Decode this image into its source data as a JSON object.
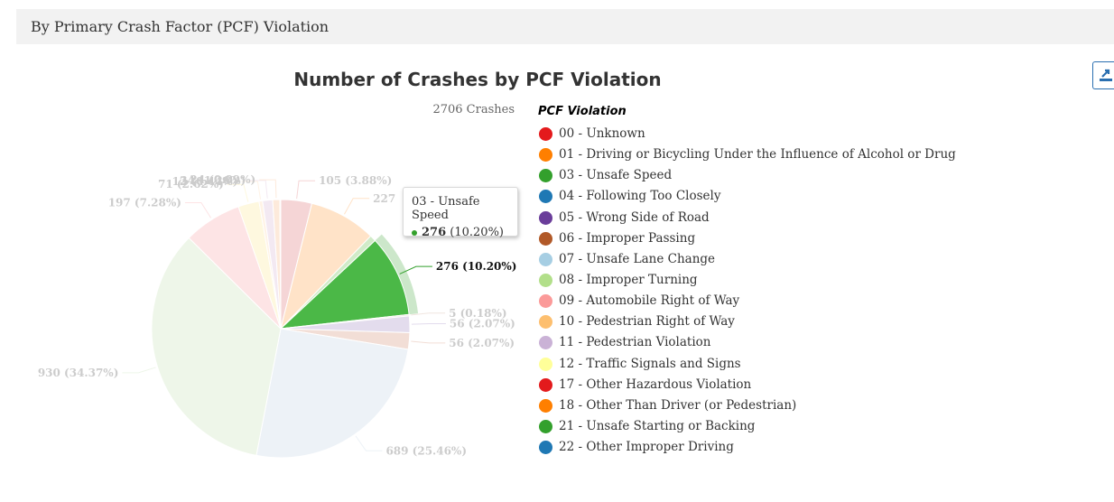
{
  "section": {
    "title": "By Primary Crash Factor (PCF) Violation"
  },
  "chart_data": {
    "type": "pie",
    "title": "Number of Crashes by PCF Violation",
    "subtitle": "2706 Crashes",
    "legend_title": "PCF Violation",
    "legend_placement": "right",
    "legend": [
      {
        "label": "00 - Unknown",
        "color": "#e41a1c"
      },
      {
        "label": "01 - Driving or Bicycling Under the Influence of Alcohol or Drug",
        "color": "#ff7f00"
      },
      {
        "label": "03 - Unsafe Speed",
        "color": "#33a02c"
      },
      {
        "label": "04 - Following Too Closely",
        "color": "#1f78b4"
      },
      {
        "label": "05 - Wrong Side of Road",
        "color": "#6a3d9a"
      },
      {
        "label": "06 - Improper Passing",
        "color": "#b15928"
      },
      {
        "label": "07 - Unsafe Lane Change",
        "color": "#a6cee3"
      },
      {
        "label": "08 - Improper Turning",
        "color": "#b2df8a"
      },
      {
        "label": "09 - Automobile Right of Way",
        "color": "#fb9a99"
      },
      {
        "label": "10 - Pedestrian Right of Way",
        "color": "#fdbf6f"
      },
      {
        "label": "11 - Pedestrian Violation",
        "color": "#cab2d6"
      },
      {
        "label": "12 - Traffic Signals and Signs",
        "color": "#ffff99"
      },
      {
        "label": "17 - Other Hazardous Violation",
        "color": "#e31a1c"
      },
      {
        "label": "18 - Other Than Driver (or Pedestrian)",
        "color": "#ff7f00"
      },
      {
        "label": "21 - Unsafe Starting or Backing",
        "color": "#33a02c"
      },
      {
        "label": "22 - Other Improper Driving",
        "color": "#1f78b4"
      }
    ],
    "slices": [
      {
        "value": 105,
        "label": "105 (3.88%)",
        "color": "#f5d5d6",
        "label_color": "#cccccc"
      },
      {
        "value": 227,
        "label": "227",
        "color": "#ffe3c8",
        "label_color": "#cccccc"
      },
      {
        "value": 21,
        "label": "",
        "color": "#d1ebc8",
        "label_color": "#cccccc"
      },
      {
        "value": 276,
        "label": "276 (10.20%)",
        "color": "#4bb847",
        "label_color": "#111111",
        "highlighted": true
      },
      {
        "value": 5,
        "label": "5 (0.18%)",
        "color": "#f1e6e0",
        "label_color": "#cccccc"
      },
      {
        "value": 56,
        "label": "56 (2.07%)",
        "color": "#e3dced",
        "label_color": "#cccccc"
      },
      {
        "value": 56,
        "label": "56 (2.07%)",
        "color": "#f2ded6",
        "label_color": "#cccccc"
      },
      {
        "value": 689,
        "label": "689 (25.46%)",
        "color": "#edf2f7",
        "label_color": "#cccccc"
      },
      {
        "value": 930,
        "label": "930 (34.37%)",
        "color": "#eef6e9",
        "label_color": "#cccccc"
      },
      {
        "value": 197,
        "label": "197 (7.28%)",
        "color": "#fde4e5",
        "label_color": "#cccccc"
      },
      {
        "value": 71,
        "label": "71 (2.62%)",
        "color": "#fef8df",
        "label_color": "#cccccc"
      },
      {
        "value": 12,
        "label": "12 (0.44%)",
        "color": "#fff3e6",
        "label_color": "#cccccc"
      },
      {
        "value": 34,
        "label": "34 (1.26%)",
        "color": "#f3e9f2",
        "label_color": "#cccccc"
      },
      {
        "value": 24,
        "label": "24 (0.89%)",
        "color": "#fdeadb",
        "label_color": "#cccccc"
      },
      {
        "value": 3,
        "label": "",
        "color": "#d4ecd2",
        "label_color": "#cccccc"
      }
    ],
    "tooltip": {
      "title": "03 - Unsafe Speed",
      "value": "276",
      "percent": "(10.20%)",
      "color": "#33a02c"
    }
  }
}
